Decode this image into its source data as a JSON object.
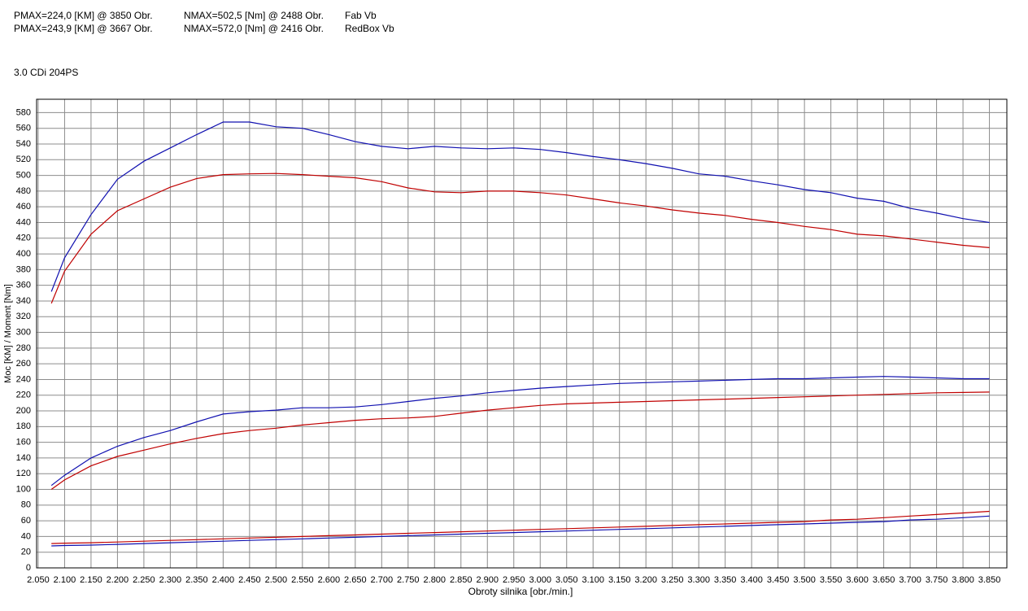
{
  "chart_data": {
    "type": "line",
    "subtitle": "3.0 CDi 204PS",
    "x_label": "Obroty silnika [obr./min.]",
    "y_label": "Moc [KM] / Moment [Nm]",
    "grid": true,
    "xlim": [
      2047,
      3883
    ],
    "ylim": [
      0,
      597
    ],
    "xticks": [
      {
        "value": 2050,
        "label": "2.050"
      },
      {
        "value": 2100,
        "label": "2.100"
      },
      {
        "value": 2150,
        "label": "2.150"
      },
      {
        "value": 2200,
        "label": "2.200"
      },
      {
        "value": 2250,
        "label": "2.250"
      },
      {
        "value": 2300,
        "label": "2.300"
      },
      {
        "value": 2350,
        "label": "2.350"
      },
      {
        "value": 2400,
        "label": "2.400"
      },
      {
        "value": 2450,
        "label": "2.450"
      },
      {
        "value": 2500,
        "label": "2.500"
      },
      {
        "value": 2550,
        "label": "2.550"
      },
      {
        "value": 2600,
        "label": "2.600"
      },
      {
        "value": 2650,
        "label": "2.650"
      },
      {
        "value": 2700,
        "label": "2.700"
      },
      {
        "value": 2750,
        "label": "2.750"
      },
      {
        "value": 2800,
        "label": "2.800"
      },
      {
        "value": 2850,
        "label": "2.850"
      },
      {
        "value": 2900,
        "label": "2.900"
      },
      {
        "value": 2950,
        "label": "2.950"
      },
      {
        "value": 3000,
        "label": "3.000"
      },
      {
        "value": 3050,
        "label": "3.050"
      },
      {
        "value": 3100,
        "label": "3.100"
      },
      {
        "value": 3150,
        "label": "3.150"
      },
      {
        "value": 3200,
        "label": "3.200"
      },
      {
        "value": 3250,
        "label": "3.250"
      },
      {
        "value": 3300,
        "label": "3.300"
      },
      {
        "value": 3350,
        "label": "3.350"
      },
      {
        "value": 3400,
        "label": "3.400"
      },
      {
        "value": 3450,
        "label": "3.450"
      },
      {
        "value": 3500,
        "label": "3.500"
      },
      {
        "value": 3550,
        "label": "3.550"
      },
      {
        "value": 3600,
        "label": "3.600"
      },
      {
        "value": 3650,
        "label": "3.650"
      },
      {
        "value": 3700,
        "label": "3.700"
      },
      {
        "value": 3750,
        "label": "3.750"
      },
      {
        "value": 3800,
        "label": "3.800"
      },
      {
        "value": 3850,
        "label": "3.850"
      }
    ],
    "yticks": [
      0,
      20,
      40,
      60,
      80,
      100,
      120,
      140,
      160,
      180,
      200,
      220,
      240,
      260,
      280,
      300,
      320,
      340,
      360,
      380,
      400,
      420,
      440,
      460,
      480,
      500,
      520,
      540,
      560,
      580
    ],
    "x": [
      2075,
      2100,
      2150,
      2200,
      2250,
      2300,
      2350,
      2400,
      2450,
      2500,
      2550,
      2600,
      2650,
      2700,
      2750,
      2800,
      2850,
      2900,
      2950,
      3000,
      3050,
      3100,
      3150,
      3200,
      3250,
      3300,
      3350,
      3400,
      3450,
      3500,
      3550,
      3600,
      3650,
      3700,
      3750,
      3800,
      3850
    ],
    "series": [
      {
        "name": "Fab Vb",
        "color": "#c00000",
        "pmax": "PMAX=224,0 [KM] @ 3850 Obr.",
        "nmax": "NMAX=502,5 [Nm] @ 2488 Obr.",
        "torque": [
          337,
          378,
          425,
          455,
          470,
          485,
          496,
          501,
          502,
          502.5,
          501,
          499,
          497,
          492,
          484,
          479,
          478,
          480,
          480,
          478,
          475,
          470,
          465,
          461,
          456,
          452,
          449,
          444,
          440,
          435,
          431,
          425,
          423,
          419,
          415,
          411,
          408
        ],
        "power": [
          100,
          112,
          130,
          142,
          150,
          158,
          165,
          171,
          175,
          178,
          182,
          185,
          188,
          190,
          191,
          193,
          197,
          201,
          204,
          207,
          209,
          210,
          211,
          212,
          213,
          214,
          215,
          216,
          217,
          218,
          219,
          220,
          221,
          222,
          223,
          223.5,
          224
        ],
        "loss": [
          31,
          31.5,
          32,
          33,
          34,
          35,
          36,
          37,
          38,
          39,
          40,
          41,
          42,
          43,
          44,
          45,
          46,
          47,
          48,
          49,
          50,
          51,
          52,
          53,
          54,
          55,
          56,
          57,
          58,
          59,
          61,
          62,
          64,
          66,
          68,
          70,
          72
        ]
      },
      {
        "name": "RedBox Vb",
        "color": "#1010b0",
        "pmax": "PMAX=243,9 [KM] @ 3667 Obr.",
        "nmax": "NMAX=572,0 [Nm] @ 2416 Obr.",
        "torque": [
          352,
          395,
          450,
          495,
          518,
          535,
          552,
          568,
          568,
          562,
          560,
          552,
          543,
          537,
          534,
          537,
          535,
          534,
          535,
          533,
          529,
          524,
          520,
          515,
          509,
          502,
          499,
          493,
          488,
          482,
          478,
          471,
          467,
          458,
          452,
          445,
          440
        ],
        "power": [
          105,
          118,
          140,
          155,
          166,
          175,
          186,
          196,
          199,
          201,
          204,
          204,
          205,
          208,
          212,
          216,
          219,
          223,
          226,
          229,
          231,
          233,
          235,
          236,
          237,
          238,
          239,
          240,
          241,
          241,
          242,
          243,
          243.9,
          243,
          242,
          241,
          241
        ],
        "loss": [
          28,
          28.5,
          29,
          30,
          31,
          32,
          33,
          34,
          35,
          36,
          37,
          38,
          39,
          40,
          41,
          42,
          43,
          44,
          45,
          46,
          47,
          48,
          49,
          50,
          51,
          52,
          53,
          54,
          55,
          56,
          57,
          58,
          59,
          61,
          62,
          64,
          66
        ]
      }
    ]
  }
}
